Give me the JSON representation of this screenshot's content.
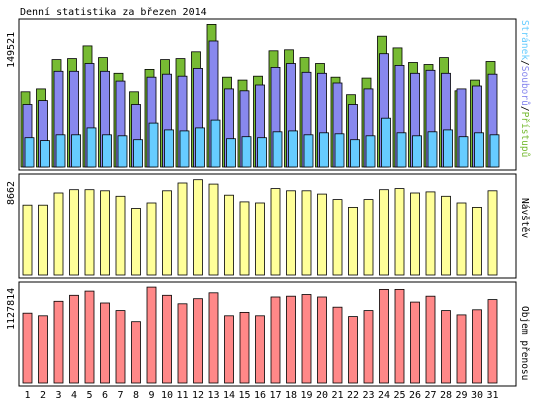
{
  "chart_data": [
    {
      "type": "bar",
      "title": "Denní statistika za březen 2014",
      "ymax_label": "149521",
      "ylabel_parts": [
        "Stránek",
        "/",
        "Souborů",
        "/",
        "Přístupů"
      ],
      "colors": {
        "stranky": "#66ccff",
        "soubory": "#8888ee",
        "pristupy": "#77bb33",
        "slash": "#000000"
      },
      "categories": [
        "1",
        "2",
        "3",
        "4",
        "5",
        "6",
        "7",
        "8",
        "9",
        "10",
        "11",
        "12",
        "13",
        "14",
        "15",
        "16",
        "17",
        "18",
        "19",
        "20",
        "21",
        "22",
        "23",
        "24",
        "25",
        "26",
        "27",
        "28",
        "29",
        "30",
        "31"
      ],
      "series": [
        {
          "name": "Stránek",
          "values": [
            30000,
            27000,
            33000,
            33000,
            40000,
            33000,
            32000,
            28000,
            45000,
            38000,
            37000,
            40000,
            48000,
            29000,
            31000,
            30000,
            36000,
            37000,
            33000,
            35000,
            34000,
            28000,
            32000,
            50000,
            35000,
            32000,
            36000,
            38000,
            31000,
            35000,
            33000
          ]
        },
        {
          "name": "Souborů",
          "values": [
            64000,
            68000,
            98000,
            98000,
            106000,
            98000,
            88000,
            64000,
            92000,
            95000,
            93000,
            101000,
            129000,
            80000,
            78000,
            84000,
            102000,
            106000,
            97000,
            96000,
            86000,
            64000,
            80000,
            116000,
            104000,
            96000,
            99000,
            96000,
            80000,
            83000,
            95000
          ]
        },
        {
          "name": "Přístupů",
          "values": [
            77000,
            80000,
            110000,
            111000,
            124000,
            112000,
            96000,
            77000,
            100000,
            110000,
            111000,
            118000,
            146000,
            92000,
            89000,
            93000,
            119000,
            120000,
            112000,
            106000,
            92000,
            74000,
            91000,
            134000,
            122000,
            107000,
            105000,
            112000,
            78000,
            89000,
            108000
          ]
        }
      ],
      "ylim": [
        0,
        149521
      ]
    },
    {
      "type": "bar",
      "ymax_label": "8662",
      "ylabel": "Návštěv",
      "color": "#ffff99",
      "categories": [
        "1",
        "2",
        "3",
        "4",
        "5",
        "6",
        "7",
        "8",
        "9",
        "10",
        "11",
        "12",
        "13",
        "14",
        "15",
        "16",
        "17",
        "18",
        "19",
        "20",
        "21",
        "22",
        "23",
        "24",
        "25",
        "26",
        "27",
        "28",
        "29",
        "30",
        "31"
      ],
      "series": [
        {
          "name": "Návštěv",
          "values": [
            6300,
            6300,
            7400,
            7700,
            7700,
            7600,
            7100,
            6000,
            6500,
            7600,
            8300,
            8600,
            8200,
            7200,
            6600,
            6500,
            7800,
            7600,
            7600,
            7300,
            6800,
            6100,
            6800,
            7700,
            7800,
            7400,
            7500,
            7100,
            6500,
            6100,
            7600
          ]
        }
      ],
      "ylim": [
        0,
        8662
      ]
    },
    {
      "type": "bar",
      "ymax_label": "1127814",
      "ylabel": "Objem přenosu",
      "color": "#ff8888",
      "categories": [
        "1",
        "2",
        "3",
        "4",
        "5",
        "6",
        "7",
        "8",
        "9",
        "10",
        "11",
        "12",
        "13",
        "14",
        "15",
        "16",
        "17",
        "18",
        "19",
        "20",
        "21",
        "22",
        "23",
        "24",
        "25",
        "26",
        "27",
        "28",
        "29",
        "30",
        "31"
      ],
      "series": [
        {
          "name": "Objem přenosu",
          "values": [
            820000,
            790000,
            960000,
            1030000,
            1080000,
            940000,
            850000,
            720000,
            1127000,
            1030000,
            930000,
            990000,
            1060000,
            790000,
            830000,
            790000,
            1010000,
            1020000,
            1040000,
            1010000,
            890000,
            780000,
            850000,
            1100000,
            1100000,
            950000,
            1020000,
            850000,
            800000,
            860000,
            980000
          ]
        }
      ],
      "ylim": [
        0,
        1127814
      ]
    }
  ],
  "weekend_days": [
    "1",
    "2",
    "8",
    "9",
    "15",
    "16",
    "22",
    "23",
    "29",
    "30"
  ],
  "colors": {
    "weekend_label": "#669900",
    "weekday_label": "#000000"
  }
}
